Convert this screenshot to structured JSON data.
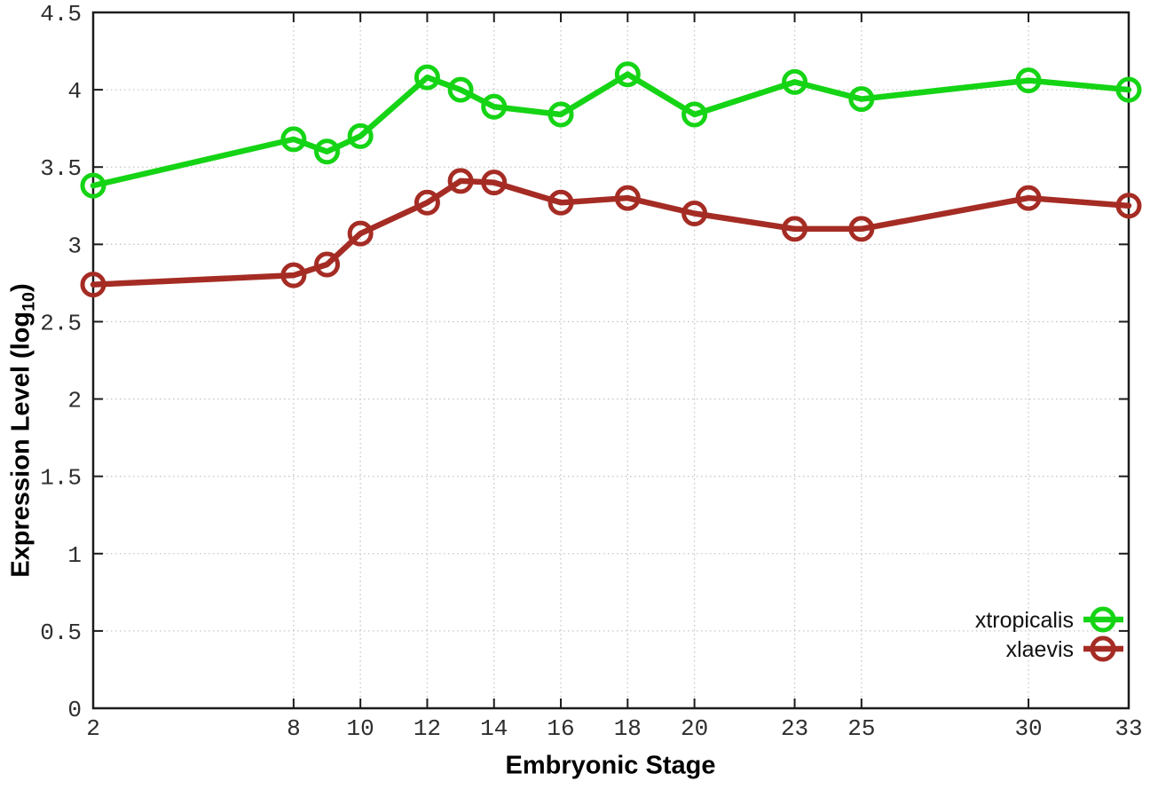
{
  "chart_data": {
    "type": "line",
    "title": "",
    "xlabel": "Embryonic Stage",
    "ylabel": "Expression Level (log10)",
    "ylabel_parts": {
      "main": "Expression Level (log",
      "sub": "10",
      "end": ")"
    },
    "x": [
      2,
      8,
      9,
      10,
      12,
      13,
      14,
      16,
      18,
      20,
      23,
      25,
      30,
      33
    ],
    "xlim": [
      2,
      33
    ],
    "ylim": [
      0,
      4.5
    ],
    "xticks": [
      2,
      8,
      10,
      12,
      14,
      16,
      18,
      20,
      23,
      25,
      30,
      33
    ],
    "xtick_labels": [
      "2",
      "8",
      "10",
      "12",
      "14",
      "16",
      "18",
      "20",
      "23",
      "25",
      "30",
      "33"
    ],
    "yticks": [
      0,
      0.5,
      1,
      1.5,
      2,
      2.5,
      3,
      3.5,
      4,
      4.5
    ],
    "ytick_labels": [
      "0",
      "0.5",
      "1",
      "1.5",
      "2",
      "2.5",
      "3",
      "3.5",
      "4",
      "4.5"
    ],
    "grid": true,
    "legend_position": "bottom-right",
    "series": [
      {
        "name": "xtropicalis",
        "color": "#15d415",
        "marker": "open-circle",
        "values": [
          3.38,
          3.68,
          3.6,
          3.7,
          4.08,
          4.0,
          3.89,
          3.84,
          4.1,
          3.84,
          4.05,
          3.94,
          4.06,
          4.0
        ]
      },
      {
        "name": "xlaevis",
        "color": "#a52c24",
        "marker": "open-circle",
        "values": [
          2.74,
          2.8,
          2.87,
          3.07,
          3.27,
          3.41,
          3.4,
          3.27,
          3.3,
          3.2,
          3.1,
          3.1,
          3.3,
          3.25
        ]
      }
    ],
    "colors": {
      "axis": "#1c1c1c",
      "grid": "#c6c6c6",
      "tick_text": "#2e2e2e",
      "label_text": "#000000",
      "legend_text": "#111111",
      "background": "#ffffff"
    }
  }
}
